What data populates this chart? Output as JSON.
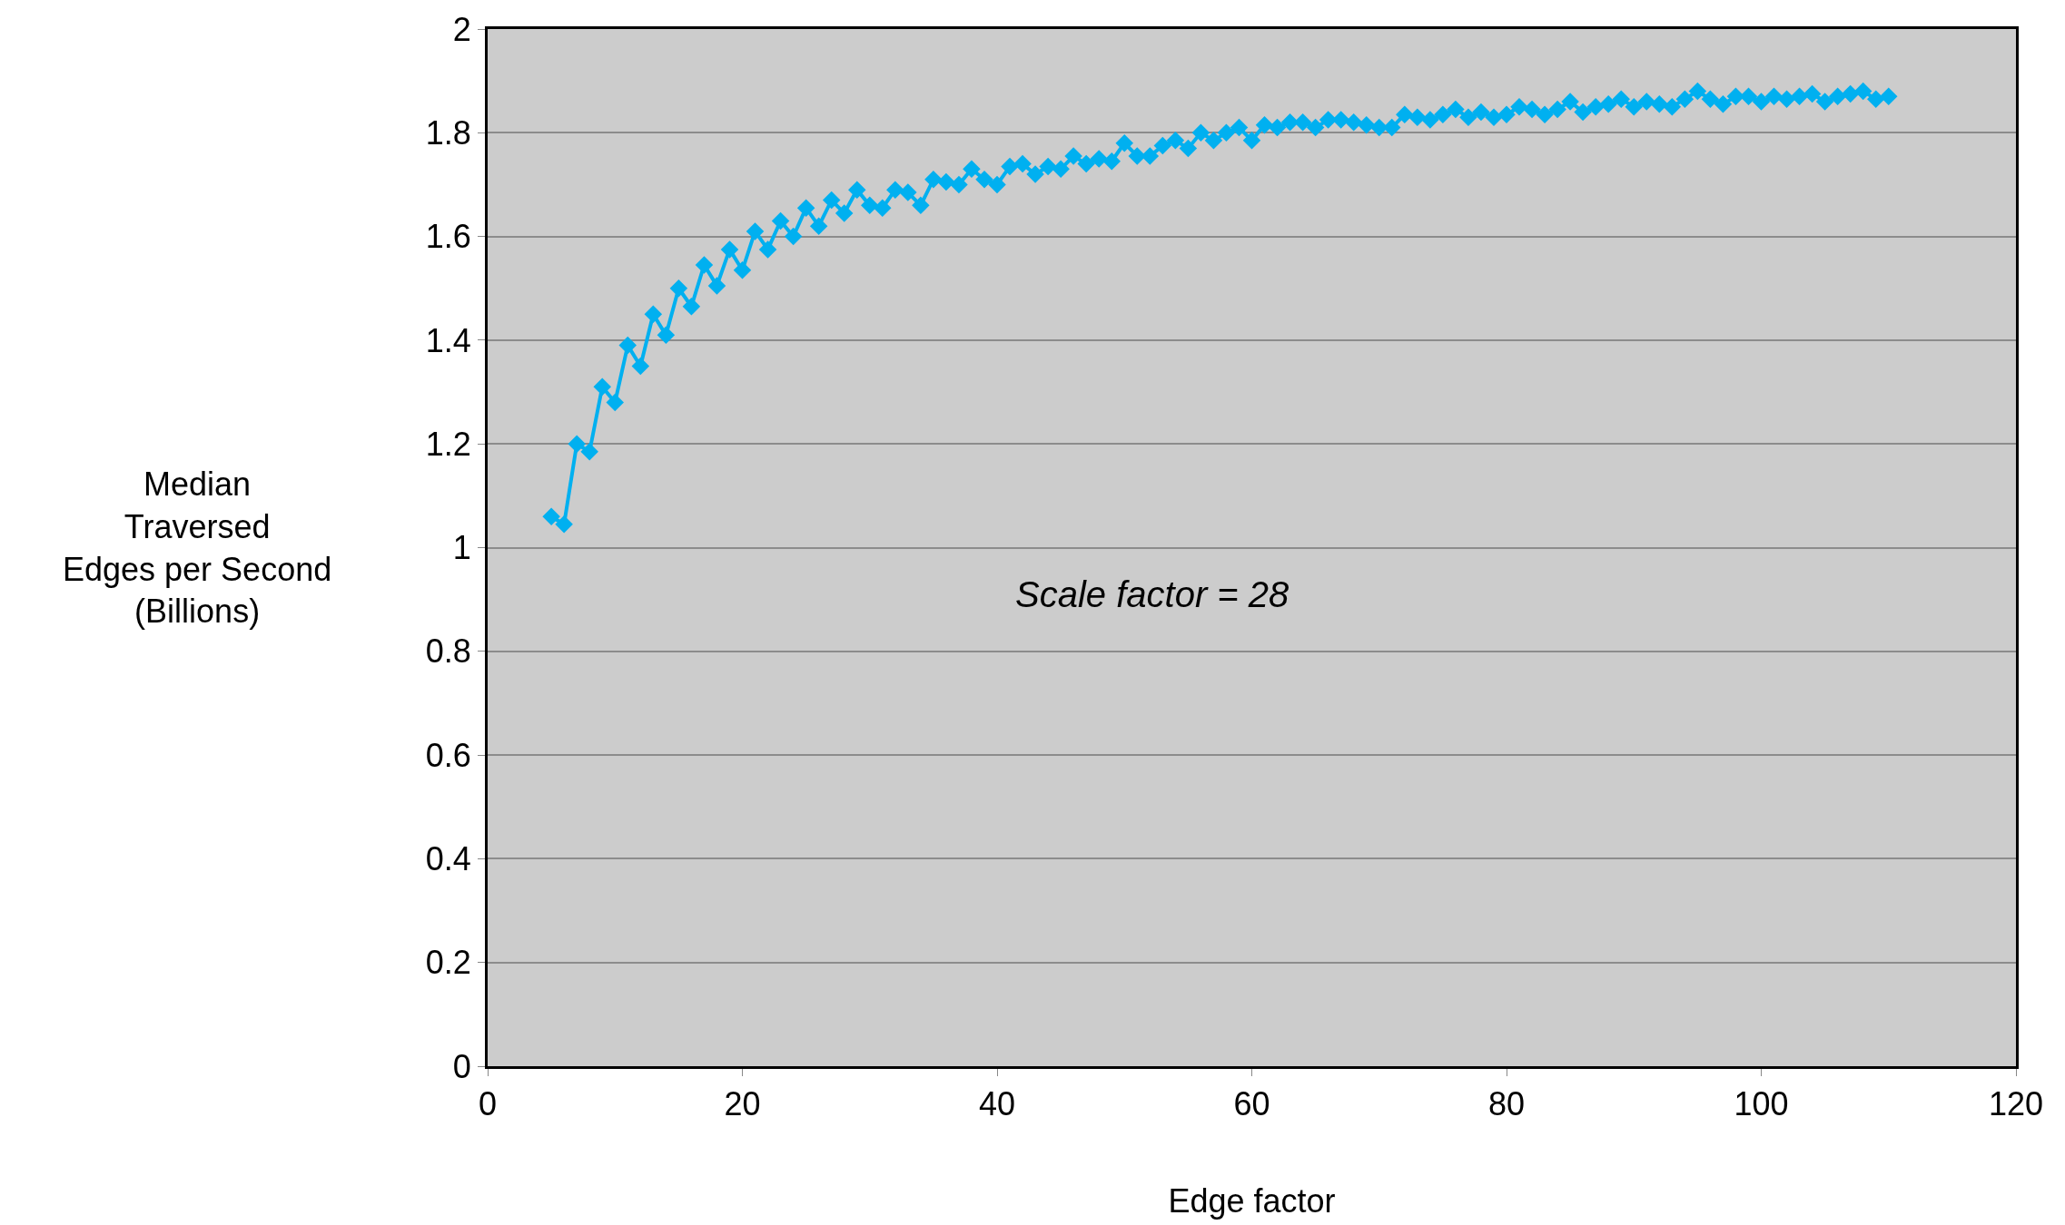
{
  "chart_data": {
    "type": "line",
    "xlabel": "Edge factor",
    "ylabel": "Median\nTraversed\nEdges per Second\n(Billions)",
    "annotations": [
      "Scale factor = 28"
    ],
    "x": [
      5,
      6,
      7,
      8,
      9,
      10,
      11,
      12,
      13,
      14,
      15,
      16,
      17,
      18,
      19,
      20,
      21,
      22,
      23,
      24,
      25,
      26,
      27,
      28,
      29,
      30,
      31,
      32,
      33,
      34,
      35,
      36,
      37,
      38,
      39,
      40,
      41,
      42,
      43,
      44,
      45,
      46,
      47,
      48,
      49,
      50,
      51,
      52,
      53,
      54,
      55,
      56,
      57,
      58,
      59,
      60,
      61,
      62,
      63,
      64,
      65,
      66,
      67,
      68,
      69,
      70,
      71,
      72,
      73,
      74,
      75,
      76,
      77,
      78,
      79,
      80,
      81,
      82,
      83,
      84,
      85,
      86,
      87,
      88,
      89,
      90,
      91,
      92,
      93,
      94,
      95,
      96,
      97,
      98,
      99,
      100,
      101,
      102,
      103,
      104,
      105,
      106,
      107,
      108,
      109,
      110
    ],
    "series": [
      {
        "color": "#00b0f0",
        "values": [
          1.06,
          1.045,
          1.2,
          1.185,
          1.31,
          1.28,
          1.39,
          1.35,
          1.45,
          1.41,
          1.5,
          1.465,
          1.545,
          1.505,
          1.575,
          1.535,
          1.61,
          1.575,
          1.63,
          1.6,
          1.655,
          1.62,
          1.67,
          1.645,
          1.69,
          1.66,
          1.655,
          1.69,
          1.685,
          1.66,
          1.71,
          1.705,
          1.7,
          1.73,
          1.71,
          1.7,
          1.735,
          1.74,
          1.72,
          1.735,
          1.73,
          1.755,
          1.74,
          1.75,
          1.745,
          1.78,
          1.755,
          1.755,
          1.775,
          1.785,
          1.77,
          1.8,
          1.785,
          1.8,
          1.81,
          1.785,
          1.815,
          1.81,
          1.82,
          1.82,
          1.81,
          1.825,
          1.825,
          1.82,
          1.815,
          1.81,
          1.81,
          1.835,
          1.83,
          1.825,
          1.835,
          1.845,
          1.83,
          1.84,
          1.83,
          1.835,
          1.85,
          1.845,
          1.835,
          1.845,
          1.86,
          1.84,
          1.85,
          1.855,
          1.865,
          1.85,
          1.86,
          1.855,
          1.85,
          1.865,
          1.88,
          1.865,
          1.855,
          1.87,
          1.87,
          1.86,
          1.87,
          1.865,
          1.87,
          1.875,
          1.86,
          1.87,
          1.875,
          1.88,
          1.865,
          1.87
        ]
      }
    ],
    "xlim": [
      0,
      120
    ],
    "xticks": [
      0,
      20,
      40,
      60,
      80,
      100,
      120
    ],
    "ylim": [
      0,
      2
    ],
    "yticks": [
      0,
      0.2,
      0.4,
      0.6,
      0.8,
      1,
      1.2,
      1.4,
      1.6,
      1.8,
      2
    ],
    "grid": "y",
    "marker": "diamond",
    "line_style": "solid"
  }
}
